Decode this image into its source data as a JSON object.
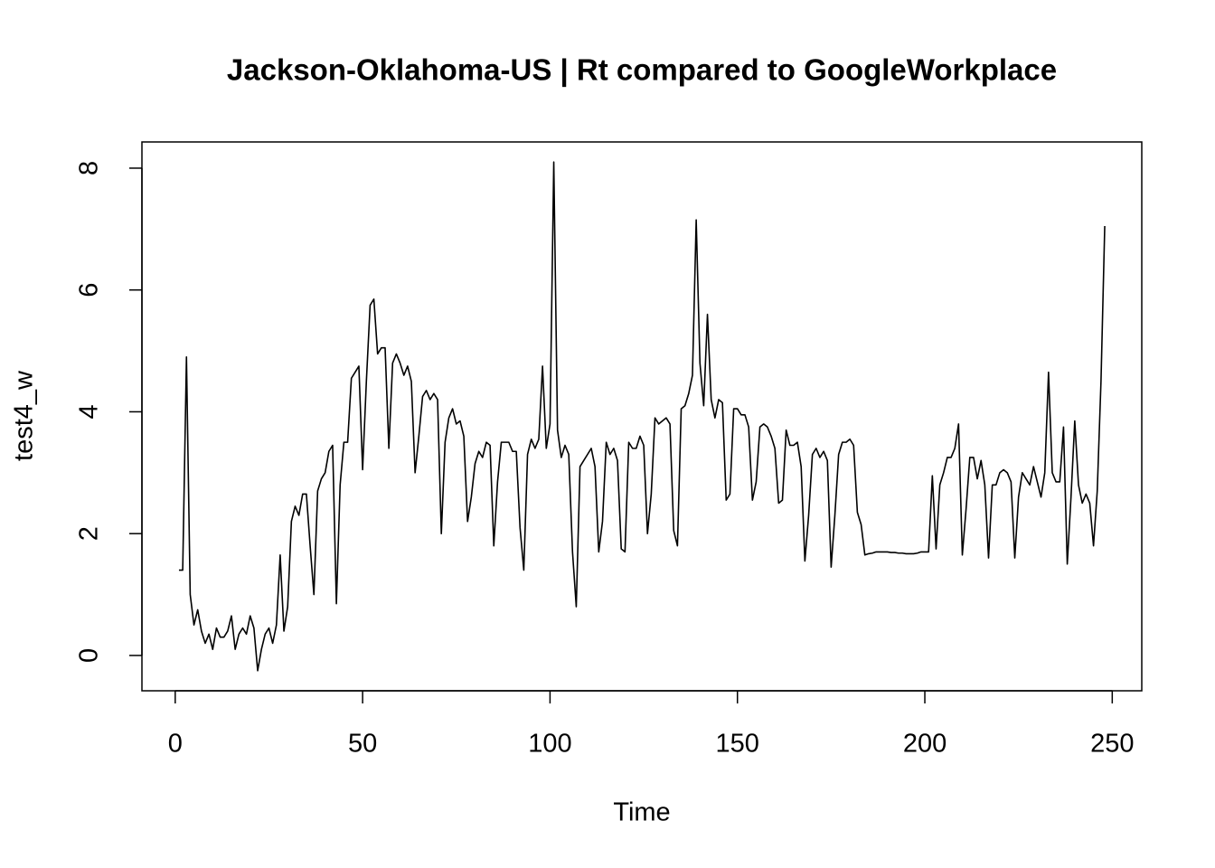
{
  "chart_data": {
    "type": "line",
    "title": "Jackson-Oklahoma-US | Rt compared to GoogleWorkplace",
    "x_label": "Time",
    "y_label": "test4_w",
    "color": "#000000",
    "x": [
      1,
      2,
      3,
      4,
      5,
      6,
      7,
      8,
      9,
      10,
      11,
      12,
      13,
      14,
      15,
      16,
      17,
      18,
      19,
      20,
      21,
      22,
      23,
      24,
      25,
      26,
      27,
      28,
      29,
      30,
      31,
      32,
      33,
      34,
      35,
      36,
      37,
      38,
      39,
      40,
      41,
      42,
      43,
      44,
      45,
      46,
      47,
      48,
      49,
      50,
      51,
      52,
      53,
      54,
      55,
      56,
      57,
      58,
      59,
      60,
      61,
      62,
      63,
      64,
      65,
      66,
      67,
      68,
      69,
      70,
      71,
      72,
      73,
      74,
      75,
      76,
      77,
      78,
      79,
      80,
      81,
      82,
      83,
      84,
      85,
      86,
      87,
      88,
      89,
      90,
      91,
      92,
      93,
      94,
      95,
      96,
      97,
      98,
      99,
      100,
      101,
      102,
      103,
      104,
      105,
      106,
      107,
      108,
      109,
      110,
      111,
      112,
      113,
      114,
      115,
      116,
      117,
      118,
      119,
      120,
      121,
      122,
      123,
      124,
      125,
      126,
      127,
      128,
      129,
      130,
      131,
      132,
      133,
      134,
      135,
      136,
      137,
      138,
      139,
      140,
      141,
      142,
      143,
      144,
      145,
      146,
      147,
      148,
      149,
      150,
      151,
      152,
      153,
      154,
      155,
      156,
      157,
      158,
      159,
      160,
      161,
      162,
      163,
      164,
      165,
      166,
      167,
      168,
      169,
      170,
      171,
      172,
      173,
      174,
      175,
      176,
      177,
      178,
      179,
      180,
      181,
      182,
      183,
      184,
      185,
      186,
      187,
      188,
      189,
      190,
      191,
      192,
      193,
      194,
      195,
      196,
      197,
      198,
      199,
      200,
      201,
      202,
      203,
      204,
      205,
      206,
      207,
      208,
      209,
      210,
      211,
      212,
      213,
      214,
      215,
      216,
      217,
      218,
      219,
      220,
      221,
      222,
      223,
      224,
      225,
      226,
      227,
      228,
      229,
      230,
      231,
      232,
      233,
      234,
      235,
      236,
      237,
      238,
      239,
      240,
      241,
      242,
      243,
      244,
      245,
      246,
      247,
      248
    ],
    "values": [
      1.4,
      1.4,
      4.9,
      1.0,
      0.5,
      0.75,
      0.4,
      0.2,
      0.35,
      0.1,
      0.45,
      0.3,
      0.3,
      0.4,
      0.65,
      0.1,
      0.35,
      0.45,
      0.35,
      0.65,
      0.45,
      -0.25,
      0.1,
      0.35,
      0.45,
      0.2,
      0.5,
      1.65,
      0.4,
      0.8,
      2.2,
      2.45,
      2.3,
      2.65,
      2.65,
      1.8,
      1.0,
      2.7,
      2.9,
      3.0,
      3.35,
      3.45,
      0.85,
      2.8,
      3.5,
      3.5,
      4.55,
      4.65,
      4.75,
      3.05,
      4.5,
      5.75,
      5.85,
      4.95,
      5.05,
      5.05,
      3.4,
      4.8,
      4.95,
      4.8,
      4.6,
      4.75,
      4.5,
      3.0,
      3.6,
      4.25,
      4.35,
      4.2,
      4.3,
      4.2,
      2.0,
      3.5,
      3.9,
      4.05,
      3.8,
      3.85,
      3.6,
      2.2,
      2.6,
      3.15,
      3.35,
      3.25,
      3.5,
      3.45,
      1.8,
      2.85,
      3.5,
      3.5,
      3.5,
      3.35,
      3.35,
      2.1,
      1.4,
      3.3,
      3.55,
      3.4,
      3.55,
      4.75,
      3.4,
      3.8,
      8.1,
      3.7,
      3.25,
      3.45,
      3.3,
      1.7,
      0.8,
      3.1,
      3.2,
      3.3,
      3.4,
      3.1,
      1.7,
      2.2,
      3.5,
      3.3,
      3.4,
      3.2,
      1.75,
      1.7,
      3.5,
      3.4,
      3.4,
      3.6,
      3.45,
      2.0,
      2.65,
      3.9,
      3.8,
      3.85,
      3.9,
      3.8,
      2.05,
      1.8,
      4.05,
      4.1,
      4.3,
      4.6,
      7.15,
      4.8,
      4.1,
      5.6,
      4.2,
      3.9,
      4.2,
      4.15,
      2.55,
      2.65,
      4.05,
      4.05,
      3.95,
      3.95,
      3.75,
      2.55,
      2.85,
      3.75,
      3.8,
      3.75,
      3.6,
      3.4,
      2.5,
      2.55,
      3.7,
      3.45,
      3.45,
      3.5,
      3.1,
      1.55,
      2.3,
      3.3,
      3.4,
      3.25,
      3.35,
      3.2,
      1.45,
      2.3,
      3.3,
      3.5,
      3.5,
      3.55,
      3.45,
      2.35,
      2.15,
      1.65,
      1.67,
      1.68,
      1.7,
      1.7,
      1.7,
      1.7,
      1.69,
      1.69,
      1.68,
      1.68,
      1.67,
      1.67,
      1.67,
      1.68,
      1.7,
      1.7,
      1.7,
      2.95,
      1.75,
      2.8,
      3.0,
      3.25,
      3.25,
      3.4,
      3.8,
      1.65,
      2.4,
      3.25,
      3.25,
      2.9,
      3.2,
      2.8,
      1.6,
      2.8,
      2.8,
      3.0,
      3.05,
      3.0,
      2.85,
      1.6,
      2.6,
      3.0,
      2.9,
      2.8,
      3.1,
      2.85,
      2.6,
      3.0,
      4.65,
      3.0,
      2.85,
      2.85,
      3.75,
      1.5,
      2.6,
      3.85,
      2.8,
      2.5,
      2.65,
      2.5,
      1.8,
      2.7,
      4.5,
      7.05
    ],
    "xlim": [
      -8.88,
      257.88
    ],
    "xticks": [
      0,
      50,
      100,
      150,
      200,
      250
    ],
    "ylim": [
      -0.58,
      8.43
    ],
    "yticks": [
      0,
      2,
      4,
      6,
      8
    ]
  }
}
